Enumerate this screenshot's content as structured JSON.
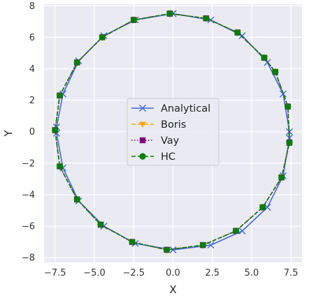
{
  "chart_data": {
    "type": "line",
    "xlabel": "X",
    "ylabel": "Y",
    "xlim": [
      -8.2,
      8.2
    ],
    "ylim": [
      -8.3,
      8.1
    ],
    "xticks": [
      -7.5,
      -5.0,
      -2.5,
      0.0,
      2.5,
      5.0,
      7.5
    ],
    "xtick_labels": [
      "−7.5",
      "−5.0",
      "−2.5",
      "0.0",
      "2.5",
      "5.0",
      "7.5"
    ],
    "yticks": [
      -8,
      -6,
      -4,
      -2,
      0,
      2,
      4,
      6,
      8
    ],
    "ytick_labels": [
      "−8",
      "−6",
      "−4",
      "−2",
      "0",
      "2",
      "4",
      "6",
      "8"
    ],
    "grid": true,
    "legend_position": "center",
    "series": [
      {
        "name": "Analytical",
        "color": "#4169e1",
        "line_style": "solid",
        "marker": "x",
        "x": [
          0.0,
          2.4,
          4.4,
          6.0,
          7.0,
          7.4,
          7.4,
          7.0,
          6.0,
          4.4,
          2.4,
          0.0,
          -2.4,
          -4.4,
          -6.0,
          -7.0,
          -7.4,
          -7.4,
          -7.0,
          -6.0,
          -4.4,
          -2.4,
          0.0
        ],
        "y": [
          7.5,
          7.1,
          6.1,
          4.4,
          2.4,
          0.0,
          -0.4,
          -2.8,
          -4.8,
          -6.3,
          -7.2,
          -7.5,
          -7.1,
          -6.0,
          -4.4,
          -2.3,
          -0.1,
          0.3,
          2.4,
          4.5,
          6.1,
          7.1,
          7.5
        ]
      },
      {
        "name": "Boris",
        "color": "#ffa500",
        "line_style": "dashed",
        "marker": "triangle-down",
        "x": [
          -0.2,
          2.1,
          4.1,
          5.8,
          6.5,
          7.3,
          7.4,
          6.9,
          5.7,
          4.0,
          1.9,
          -0.4,
          -2.6,
          -4.6,
          -6.1,
          -7.2,
          -7.5,
          -7.2,
          -6.1,
          -4.5,
          -2.5,
          -0.2
        ],
        "y": [
          7.5,
          7.2,
          6.3,
          4.7,
          3.8,
          1.6,
          -0.7,
          -2.9,
          -4.8,
          -6.3,
          -7.2,
          -7.5,
          -7.0,
          -5.9,
          -4.3,
          -2.2,
          0.1,
          2.3,
          4.4,
          6.0,
          7.1,
          7.5
        ]
      },
      {
        "name": "Vay",
        "color": "#800080",
        "line_style": "dotted",
        "marker": "square",
        "x": [
          -0.2,
          2.1,
          4.1,
          5.8,
          6.5,
          7.3,
          7.4,
          6.9,
          5.7,
          4.0,
          1.9,
          -0.4,
          -2.6,
          -4.6,
          -6.1,
          -7.2,
          -7.5,
          -7.2,
          -6.1,
          -4.5,
          -2.5,
          -0.2
        ],
        "y": [
          7.5,
          7.2,
          6.3,
          4.7,
          3.8,
          1.6,
          -0.7,
          -2.9,
          -4.8,
          -6.3,
          -7.2,
          -7.5,
          -7.0,
          -5.9,
          -4.3,
          -2.2,
          0.1,
          2.3,
          4.4,
          6.0,
          7.1,
          7.5
        ]
      },
      {
        "name": "HC",
        "color": "#008000",
        "line_style": "dashed",
        "marker": "circle",
        "x": [
          -0.2,
          2.1,
          4.1,
          5.8,
          6.5,
          7.3,
          7.4,
          6.9,
          5.7,
          4.0,
          1.9,
          -0.4,
          -2.6,
          -4.6,
          -6.1,
          -7.2,
          -7.5,
          -7.2,
          -6.1,
          -4.5,
          -2.5,
          -0.2
        ],
        "y": [
          7.5,
          7.2,
          6.3,
          4.7,
          3.8,
          1.6,
          -0.7,
          -2.9,
          -4.8,
          -6.3,
          -7.2,
          -7.5,
          -7.0,
          -5.9,
          -4.3,
          -2.2,
          0.1,
          2.3,
          4.4,
          6.0,
          7.1,
          7.5
        ]
      }
    ]
  }
}
